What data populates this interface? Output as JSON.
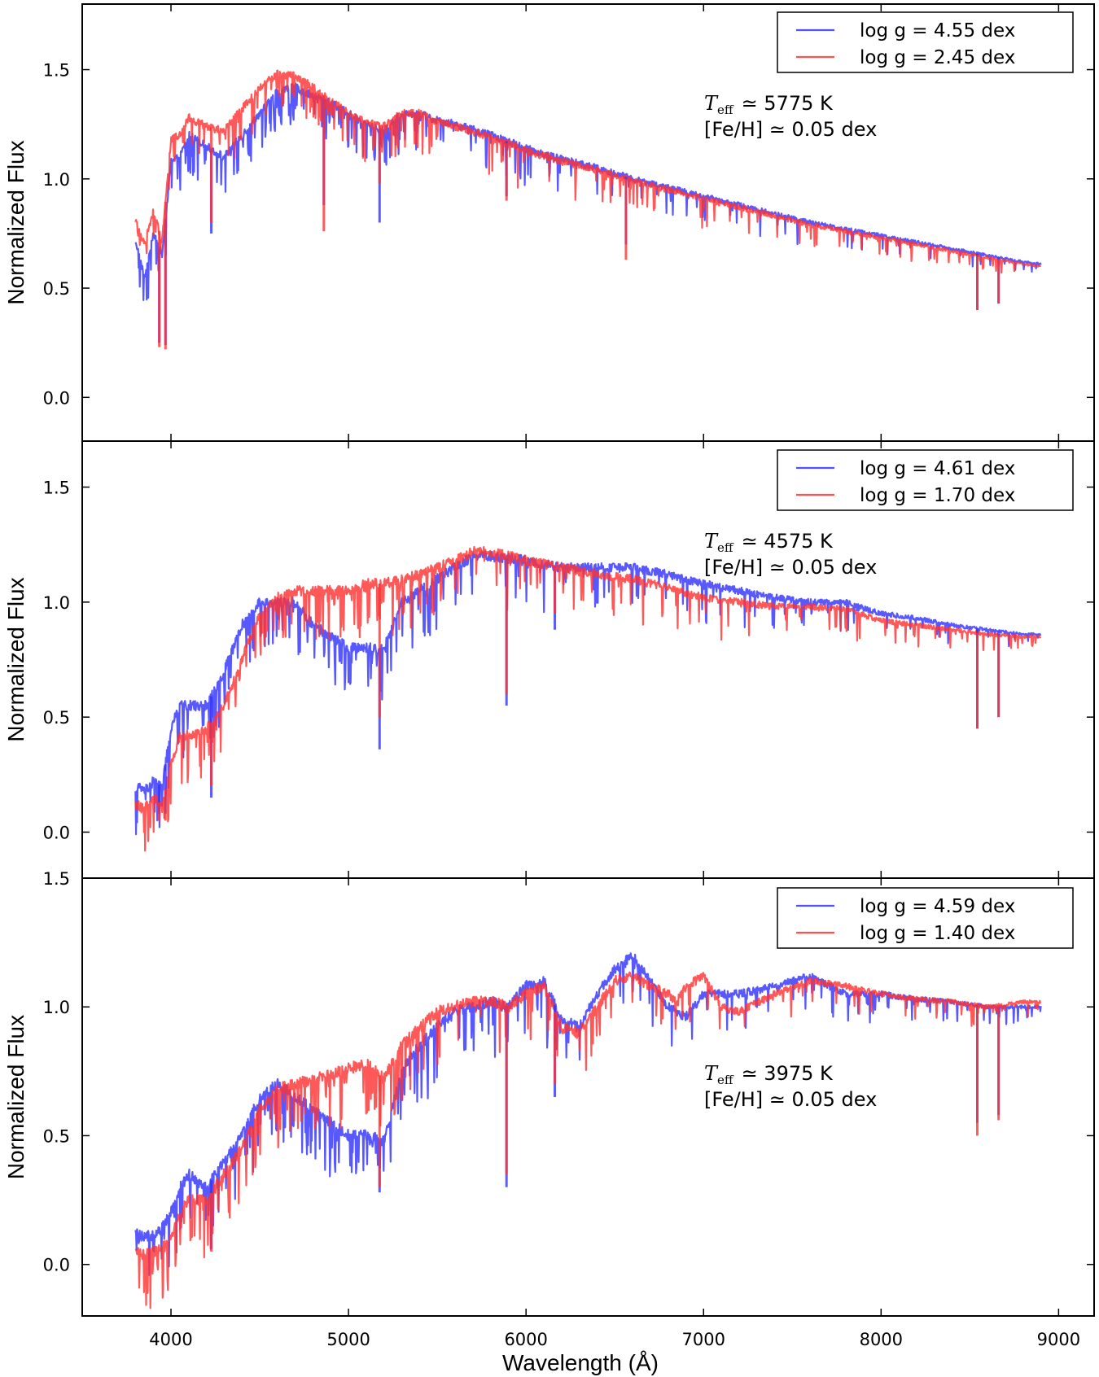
{
  "colors": {
    "blue": "#3333ff",
    "red": "#ff3333",
    "frame": "#000000"
  },
  "chart_data": [
    {
      "type": "line",
      "panel": "top",
      "xlabel": "",
      "ylabel": "Normalized Flux",
      "xlim": [
        3500,
        9200
      ],
      "ylim": [
        -0.2,
        1.8
      ],
      "yticks": [
        "0.0",
        "0.5",
        "1.0",
        "1.5"
      ],
      "legend_position": "top-right",
      "annotation": {
        "teff_symbol": "T",
        "teff_sub": "eff",
        "teff_text": "≃ 5775 K",
        "feh_text": "[Fe/H] ≃ 0.05 dex"
      },
      "series": [
        {
          "name": "log g = 4.55 dex",
          "color": "blue",
          "x": [
            3800,
            3850,
            3900,
            3950,
            4000,
            4050,
            4100,
            4200,
            4300,
            4400,
            4500,
            4600,
            4700,
            4800,
            4900,
            5000,
            5100,
            5200,
            5300,
            5400,
            5500,
            5600,
            5800,
            6000,
            6200,
            6400,
            6600,
            6800,
            7000,
            7200,
            7400,
            7600,
            7800,
            8000,
            8200,
            8400,
            8600,
            8800,
            8900
          ],
          "values": [
            0.72,
            0.55,
            0.75,
            0.65,
            1.08,
            1.1,
            1.2,
            1.15,
            1.1,
            1.2,
            1.3,
            1.4,
            1.42,
            1.38,
            1.35,
            1.3,
            1.25,
            1.22,
            1.3,
            1.3,
            1.27,
            1.25,
            1.2,
            1.14,
            1.09,
            1.05,
            1.0,
            0.96,
            0.92,
            0.88,
            0.84,
            0.8,
            0.77,
            0.74,
            0.71,
            0.68,
            0.65,
            0.62,
            0.61
          ]
        },
        {
          "name": "log g = 2.45 dex",
          "color": "red",
          "x": [
            3800,
            3850,
            3900,
            3950,
            4000,
            4050,
            4100,
            4200,
            4300,
            4400,
            4500,
            4600,
            4700,
            4800,
            4900,
            5000,
            5100,
            5200,
            5300,
            5400,
            5500,
            5600,
            5800,
            6000,
            6200,
            6400,
            6600,
            6800,
            7000,
            7200,
            7400,
            7600,
            7800,
            8000,
            8200,
            8400,
            8600,
            8800,
            8900
          ],
          "values": [
            0.82,
            0.7,
            0.85,
            0.72,
            1.18,
            1.2,
            1.28,
            1.24,
            1.22,
            1.32,
            1.42,
            1.48,
            1.47,
            1.42,
            1.36,
            1.3,
            1.26,
            1.24,
            1.3,
            1.3,
            1.26,
            1.24,
            1.19,
            1.13,
            1.08,
            1.04,
            0.99,
            0.95,
            0.91,
            0.87,
            0.83,
            0.79,
            0.76,
            0.73,
            0.7,
            0.67,
            0.64,
            0.61,
            0.6
          ]
        }
      ],
      "absorption_lines": [
        {
          "x": 3934,
          "blue": 0.25,
          "red": 0.23
        },
        {
          "x": 3969,
          "blue": 0.24,
          "red": 0.22
        },
        {
          "x": 4227,
          "blue": 0.75,
          "red": 0.8
        },
        {
          "x": 4861,
          "blue": 0.88,
          "red": 0.76
        },
        {
          "x": 5175,
          "blue": 0.8,
          "red": 0.98
        },
        {
          "x": 5890,
          "blue": 0.92,
          "red": 0.9
        },
        {
          "x": 6563,
          "blue": 0.7,
          "red": 0.63
        },
        {
          "x": 8542,
          "blue": 0.4,
          "red": 0.4
        },
        {
          "x": 8662,
          "blue": 0.43,
          "red": 0.43
        }
      ]
    },
    {
      "type": "line",
      "panel": "middle",
      "xlabel": "",
      "ylabel": "Normalized Flux",
      "xlim": [
        3500,
        9200
      ],
      "ylim": [
        -0.2,
        1.7
      ],
      "yticks": [
        "0.0",
        "0.5",
        "1.0",
        "1.5"
      ],
      "legend_position": "top-right",
      "annotation": {
        "teff_symbol": "T",
        "teff_sub": "eff",
        "teff_text": "≃ 4575 K",
        "feh_text": "[Fe/H] ≃ 0.05 dex"
      },
      "series": [
        {
          "name": "log g = 4.61 dex",
          "color": "blue",
          "x": [
            3800,
            3850,
            3900,
            3950,
            4000,
            4050,
            4100,
            4200,
            4300,
            4400,
            4500,
            4600,
            4700,
            4800,
            4900,
            5000,
            5100,
            5200,
            5300,
            5400,
            5500,
            5600,
            5700,
            5800,
            6000,
            6200,
            6400,
            6600,
            6800,
            7000,
            7200,
            7400,
            7600,
            7800,
            8000,
            8200,
            8400,
            8600,
            8800,
            8900
          ],
          "values": [
            0.2,
            0.18,
            0.22,
            0.2,
            0.45,
            0.55,
            0.55,
            0.55,
            0.7,
            0.9,
            1.0,
            1.0,
            1.0,
            0.9,
            0.85,
            0.8,
            0.8,
            0.8,
            1.0,
            1.05,
            1.1,
            1.15,
            1.2,
            1.2,
            1.18,
            1.15,
            1.15,
            1.15,
            1.12,
            1.08,
            1.05,
            1.02,
            1.0,
            1.0,
            0.95,
            0.93,
            0.9,
            0.88,
            0.86,
            0.86
          ]
        },
        {
          "name": "log g = 1.70 dex",
          "color": "red",
          "x": [
            3800,
            3850,
            3900,
            3950,
            4000,
            4050,
            4100,
            4200,
            4300,
            4400,
            4500,
            4600,
            4700,
            4800,
            4900,
            5000,
            5100,
            5200,
            5300,
            5400,
            5500,
            5600,
            5700,
            5800,
            6000,
            6200,
            6400,
            6600,
            6800,
            7000,
            7200,
            7400,
            7600,
            7800,
            8000,
            8200,
            8400,
            8600,
            8800,
            8900
          ],
          "values": [
            0.12,
            0.1,
            0.15,
            0.12,
            0.3,
            0.42,
            0.42,
            0.45,
            0.55,
            0.75,
            0.95,
            1.02,
            1.05,
            1.05,
            1.05,
            1.05,
            1.08,
            1.08,
            1.1,
            1.12,
            1.15,
            1.18,
            1.22,
            1.22,
            1.18,
            1.15,
            1.12,
            1.1,
            1.06,
            1.02,
            1.0,
            0.98,
            0.98,
            0.97,
            0.92,
            0.9,
            0.88,
            0.86,
            0.85,
            0.85
          ]
        }
      ],
      "absorption_lines": [
        {
          "x": 3934,
          "blue": 0.08,
          "red": 0.05
        },
        {
          "x": 3969,
          "blue": 0.08,
          "red": 0.05
        },
        {
          "x": 4227,
          "blue": 0.15,
          "red": 0.2
        },
        {
          "x": 5175,
          "blue": 0.36,
          "red": 0.5
        },
        {
          "x": 5890,
          "blue": 0.55,
          "red": 0.6
        },
        {
          "x": 6162,
          "blue": 0.88,
          "red": 0.95
        },
        {
          "x": 8542,
          "blue": 0.45,
          "red": 0.45
        },
        {
          "x": 8662,
          "blue": 0.5,
          "red": 0.5
        }
      ]
    },
    {
      "type": "line",
      "panel": "bottom",
      "xlabel": "Wavelength (Å)",
      "ylabel": "Normalized Flux",
      "xlim": [
        3500,
        9200
      ],
      "ylim": [
        -0.2,
        1.5
      ],
      "yticks": [
        "0.0",
        "0.5",
        "1.0",
        "1.5"
      ],
      "xticks": [
        "4000",
        "5000",
        "6000",
        "7000",
        "8000",
        "9000"
      ],
      "legend_position": "top-right",
      "annotation": {
        "teff_symbol": "T",
        "teff_sub": "eff",
        "teff_text": "≃ 3975 K",
        "feh_text": "[Fe/H] ≃ 0.05 dex"
      },
      "series": [
        {
          "name": "log g = 4.59 dex",
          "color": "blue",
          "x": [
            3800,
            3850,
            3900,
            3950,
            4000,
            4050,
            4100,
            4200,
            4300,
            4400,
            4500,
            4600,
            4700,
            4800,
            4900,
            5000,
            5100,
            5200,
            5300,
            5400,
            5500,
            5600,
            5700,
            5800,
            5900,
            6000,
            6100,
            6200,
            6300,
            6400,
            6500,
            6600,
            6700,
            6800,
            6850,
            6900,
            7000,
            7100,
            7200,
            7400,
            7600,
            7800,
            8000,
            8200,
            8400,
            8600,
            8800,
            8900
          ],
          "values": [
            0.12,
            0.1,
            0.12,
            0.14,
            0.2,
            0.3,
            0.35,
            0.3,
            0.4,
            0.5,
            0.65,
            0.7,
            0.65,
            0.6,
            0.55,
            0.5,
            0.5,
            0.48,
            0.75,
            0.85,
            0.92,
            0.98,
            1.0,
            1.02,
            1.0,
            1.08,
            1.1,
            0.95,
            0.92,
            1.05,
            1.15,
            1.2,
            1.1,
            1.0,
            0.98,
            0.96,
            1.05,
            1.05,
            1.05,
            1.08,
            1.12,
            1.05,
            1.05,
            1.03,
            1.02,
            1.0,
            1.0,
            1.0
          ]
        },
        {
          "name": "log g = 1.40 dex",
          "color": "red",
          "x": [
            3800,
            3850,
            3900,
            3950,
            4000,
            4050,
            4100,
            4200,
            4300,
            4400,
            4500,
            4600,
            4700,
            4800,
            4900,
            5000,
            5100,
            5200,
            5300,
            5400,
            5500,
            5600,
            5700,
            5800,
            5900,
            6000,
            6100,
            6200,
            6300,
            6400,
            6500,
            6600,
            6700,
            6800,
            6850,
            6900,
            7000,
            7100,
            7200,
            7400,
            7600,
            7800,
            8000,
            8200,
            8400,
            8600,
            8800,
            8900
          ],
          "values": [
            0.05,
            0.04,
            0.05,
            0.06,
            0.1,
            0.2,
            0.25,
            0.25,
            0.35,
            0.45,
            0.6,
            0.68,
            0.7,
            0.72,
            0.74,
            0.76,
            0.78,
            0.72,
            0.85,
            0.92,
            0.98,
            1.0,
            1.02,
            1.02,
            1.0,
            1.05,
            1.08,
            0.92,
            0.9,
            1.0,
            1.1,
            1.12,
            1.08,
            1.05,
            1.02,
            1.08,
            1.12,
            1.0,
            0.98,
            1.05,
            1.1,
            1.08,
            1.05,
            1.03,
            1.02,
            1.0,
            1.02,
            1.02
          ]
        }
      ],
      "absorption_lines": [
        {
          "x": 4227,
          "blue": 0.06,
          "red": 0.05
        },
        {
          "x": 5175,
          "blue": 0.28,
          "red": 0.3
        },
        {
          "x": 5890,
          "blue": 0.3,
          "red": 0.35
        },
        {
          "x": 6162,
          "blue": 0.65,
          "red": 0.7
        },
        {
          "x": 8542,
          "blue": 0.55,
          "red": 0.5
        },
        {
          "x": 8662,
          "blue": 0.58,
          "red": 0.56
        }
      ]
    }
  ]
}
